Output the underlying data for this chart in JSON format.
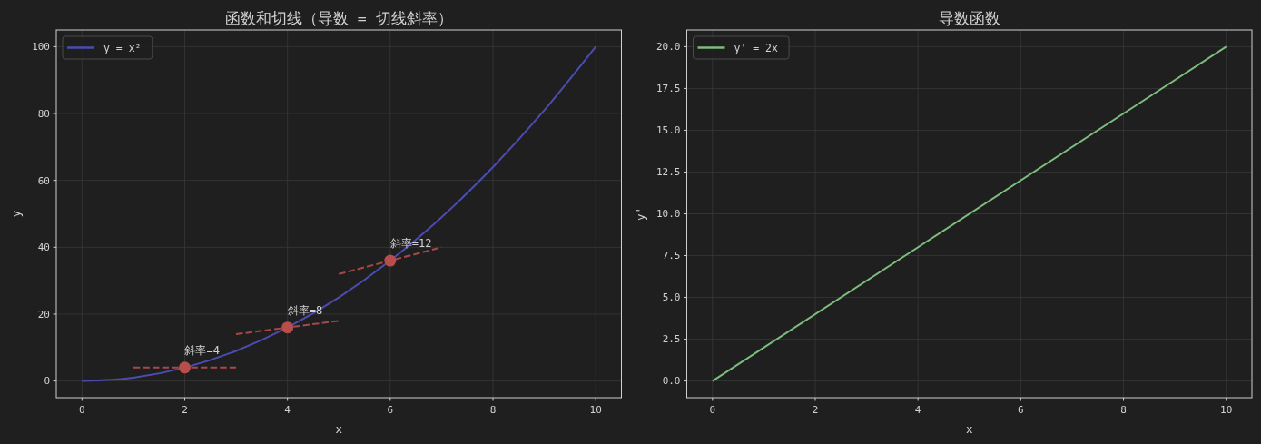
{
  "chart_data": [
    {
      "type": "line",
      "title": "函数和切线（导数 = 切线斜率）",
      "xlabel": "x",
      "ylabel": "y",
      "xlim": [
        -0.5,
        10.5
      ],
      "ylim": [
        -5,
        105
      ],
      "xticks": [
        0,
        2,
        4,
        6,
        8,
        10
      ],
      "yticks": [
        0,
        20,
        40,
        60,
        80,
        100
      ],
      "grid": true,
      "legend": "top left",
      "series": [
        {
          "name": "y = x²",
          "color": "#4c4cb0",
          "x": [
            0,
            1,
            2,
            3,
            4,
            5,
            6,
            7,
            8,
            9,
            10
          ],
          "values": [
            0,
            1,
            4,
            9,
            16,
            25,
            36,
            49,
            64,
            81,
            100
          ]
        },
        {
          "type": "line",
          "color": "#a84848",
          "line_style": "dashed",
          "x": [
            1,
            3
          ],
          "values": [
            4,
            4
          ]
        },
        {
          "type": "line",
          "color": "#a84848",
          "line_style": "dashed",
          "x": [
            3,
            5
          ],
          "values": [
            14,
            18
          ]
        },
        {
          "type": "line",
          "color": "#a84848",
          "line_style": "dashed",
          "x": [
            5,
            7
          ],
          "values": [
            32,
            40
          ]
        },
        {
          "type": "scatter",
          "color": "#b84e4b",
          "marker": "circle",
          "x": [
            2,
            4,
            6
          ],
          "values": [
            4,
            16,
            36
          ]
        }
      ],
      "annotations": [
        {
          "text": "斜率=4",
          "x": 2,
          "y": 4
        },
        {
          "text": "斜率=8",
          "x": 4,
          "y": 16
        },
        {
          "text": "斜率=12",
          "x": 6,
          "y": 36
        }
      ]
    },
    {
      "type": "line",
      "title": "导数函数",
      "xlabel": "x",
      "ylabel": "y'",
      "xlim": [
        -0.5,
        10.5
      ],
      "ylim": [
        -1,
        21
      ],
      "xticks": [
        0,
        2,
        4,
        6,
        8,
        10
      ],
      "yticks": [
        {
          "value": 0,
          "label": "0.0"
        },
        2.5,
        {
          "value": 5,
          "label": "5.0"
        },
        7.5,
        {
          "value": 10,
          "label": "10.0"
        },
        12.5,
        {
          "value": 15,
          "label": "15.0"
        },
        17.5,
        {
          "value": 20,
          "label": "20.0"
        }
      ],
      "grid": true,
      "legend": "top left",
      "series": [
        {
          "name": "y' = 2x",
          "color": "#7dbd7d",
          "x": [
            0,
            10
          ],
          "values": [
            0,
            20
          ]
        }
      ]
    }
  ]
}
